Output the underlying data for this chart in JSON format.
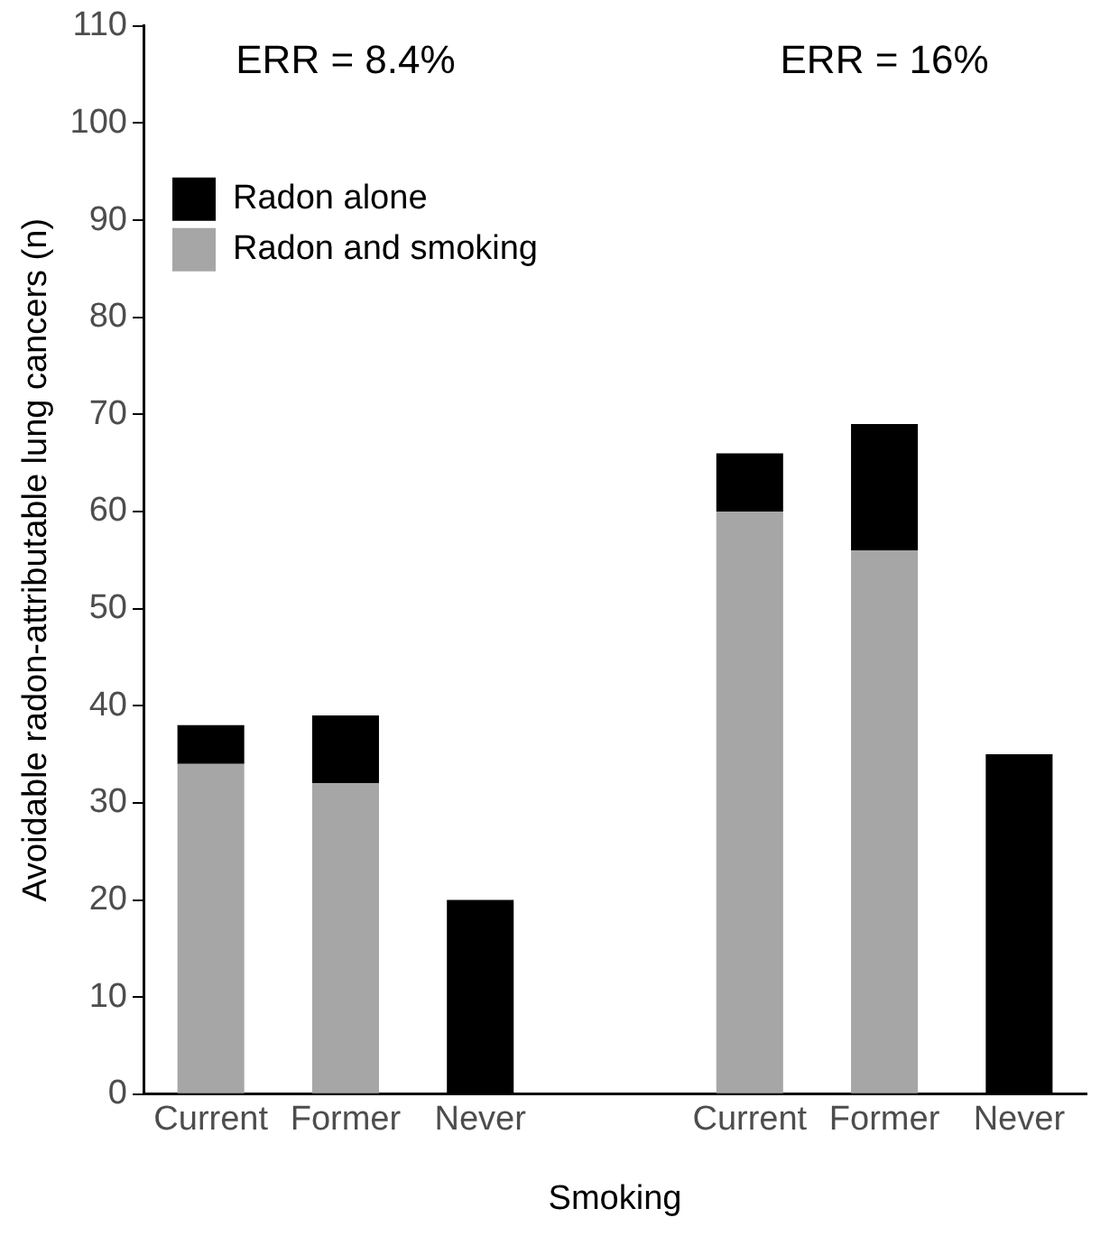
{
  "chart_data": {
    "type": "bar",
    "stacked": true,
    "xlabel": "Smoking",
    "ylabel": "Avoidable radon-attributable lung cancers (n)",
    "categories": [
      "Current",
      "Former",
      "Never",
      null,
      "Current",
      "Former",
      "Never"
    ],
    "series": [
      {
        "name": "Radon and smoking",
        "color": "#a6a6a6",
        "values": [
          34,
          32,
          null,
          null,
          60,
          56,
          null
        ]
      },
      {
        "name": "Radon alone",
        "color": "#000000",
        "values": [
          4,
          7,
          20,
          null,
          6,
          13,
          35
        ]
      }
    ],
    "ylim": [
      0,
      110
    ],
    "yticks": [
      0,
      10,
      20,
      30,
      40,
      50,
      60,
      70,
      80,
      90,
      100,
      110
    ],
    "grid": false,
    "legend": "top left",
    "annotations": [
      "ERR = 8.4%",
      "ERR = 16%"
    ]
  }
}
